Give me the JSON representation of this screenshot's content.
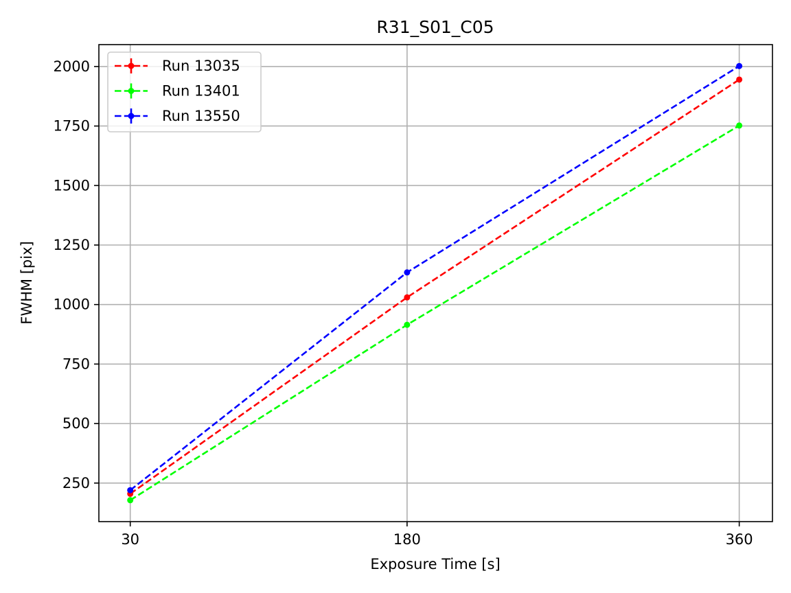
{
  "chart_data": {
    "type": "line",
    "title": "R31_S01_C05",
    "xlabel": "Exposure Time [s]",
    "ylabel": "FWHM [pix]",
    "x": [
      30,
      180,
      360
    ],
    "xticks": [
      "30",
      "180",
      "360"
    ],
    "yticks": [
      "250",
      "500",
      "750",
      "1000",
      "1250",
      "1500",
      "1750",
      "2000"
    ],
    "xlim": [
      13,
      378
    ],
    "ylim": [
      88,
      2092
    ],
    "grid": true,
    "legend_position": "top-left",
    "line_style": "dashed",
    "marker": "circle",
    "series": [
      {
        "name": "Run 13035",
        "color": "#ff0000",
        "values": [
          205,
          1030,
          1945
        ]
      },
      {
        "name": "Run 13401",
        "color": "#00ff00",
        "values": [
          178,
          915,
          1752
        ]
      },
      {
        "name": "Run 13550",
        "color": "#0000ff",
        "values": [
          220,
          1135,
          2002
        ]
      }
    ]
  }
}
